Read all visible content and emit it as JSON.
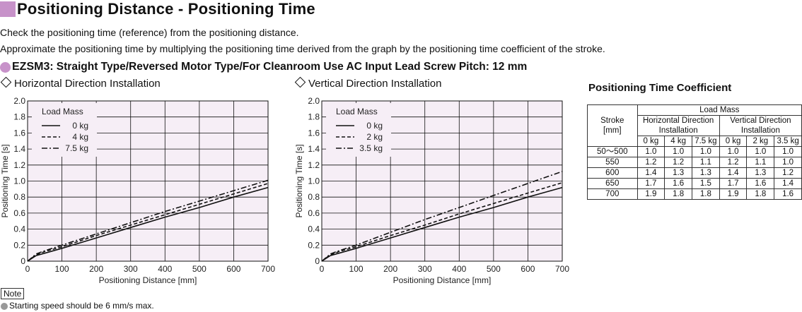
{
  "header": {
    "title": "Positioning Distance - Positioning Time",
    "desc1": "Check the positioning time (reference) from the positioning distance.",
    "desc2": "Approximate the positioning time by multiplying the positioning time derived from the graph by the positioning time coefficient of the stroke.",
    "model": "EZSM3",
    "model_desc": ": Straight Type/Reversed Motor Type/For Cleanroom Use AC Input Lead Screw Pitch: 12 mm",
    "accent_color": "#c792c9"
  },
  "chart_data": [
    {
      "type": "line",
      "title": "Horizontal Direction Installation",
      "xlabel": "Positioning Distance [mm]",
      "ylabel": "Positioning Time [s]",
      "xlim": [
        0,
        700
      ],
      "ylim": [
        0,
        2.0
      ],
      "xticks": [
        "0",
        "100",
        "200",
        "300",
        "400",
        "500",
        "600",
        "700"
      ],
      "yticks": [
        "0",
        "0.2",
        "0.4",
        "0.6",
        "0.8",
        "1.0",
        "1.2",
        "1.4",
        "1.6",
        "1.8",
        "2.0"
      ],
      "grid": true,
      "legend_title": "Load Mass",
      "legend_position": "top-left",
      "series": [
        {
          "name": "0 kg",
          "style": "solid",
          "x": [
            0,
            25,
            50,
            100,
            200,
            300,
            400,
            500,
            600,
            700
          ],
          "y": [
            0,
            0.07,
            0.1,
            0.16,
            0.29,
            0.42,
            0.55,
            0.67,
            0.8,
            0.92
          ]
        },
        {
          "name": "4 kg",
          "style": "dashed",
          "x": [
            0,
            25,
            50,
            100,
            200,
            300,
            400,
            500,
            600,
            700
          ],
          "y": [
            0,
            0.08,
            0.12,
            0.18,
            0.32,
            0.45,
            0.58,
            0.71,
            0.84,
            0.97
          ]
        },
        {
          "name": "7.5 kg",
          "style": "dashdot",
          "x": [
            0,
            25,
            50,
            100,
            200,
            300,
            400,
            500,
            600,
            700
          ],
          "y": [
            0,
            0.09,
            0.13,
            0.2,
            0.34,
            0.48,
            0.62,
            0.75,
            0.88,
            1.01
          ]
        }
      ]
    },
    {
      "type": "line",
      "title": "Vertical Direction Installation",
      "xlabel": "Positioning Distance [mm]",
      "ylabel": "Positioning Time [s]",
      "xlim": [
        0,
        700
      ],
      "ylim": [
        0,
        2.0
      ],
      "xticks": [
        "0",
        "100",
        "200",
        "300",
        "400",
        "500",
        "600",
        "700"
      ],
      "yticks": [
        "0",
        "0.2",
        "0.4",
        "0.6",
        "0.8",
        "1.0",
        "1.2",
        "1.4",
        "1.6",
        "1.8",
        "2.0"
      ],
      "grid": true,
      "legend_title": "Load Mass",
      "legend_position": "top-left",
      "series": [
        {
          "name": "0 kg",
          "style": "solid",
          "x": [
            0,
            25,
            50,
            100,
            200,
            300,
            400,
            500,
            600,
            700
          ],
          "y": [
            0,
            0.07,
            0.1,
            0.16,
            0.29,
            0.42,
            0.55,
            0.67,
            0.8,
            0.92
          ]
        },
        {
          "name": "2 kg",
          "style": "dashed",
          "x": [
            0,
            25,
            50,
            100,
            200,
            300,
            400,
            500,
            600,
            700
          ],
          "y": [
            0,
            0.08,
            0.12,
            0.18,
            0.32,
            0.45,
            0.59,
            0.72,
            0.85,
            0.98
          ]
        },
        {
          "name": "3.5 kg",
          "style": "dashdot",
          "x": [
            0,
            25,
            50,
            100,
            200,
            300,
            400,
            500,
            600,
            700
          ],
          "y": [
            0,
            0.09,
            0.13,
            0.2,
            0.36,
            0.52,
            0.67,
            0.82,
            0.97,
            1.12
          ]
        }
      ]
    }
  ],
  "coefficient": {
    "title": "Positioning Time Coefficient",
    "stroke_header": "Stroke",
    "stroke_unit": "[mm]",
    "load_mass_header": "Load Mass",
    "horizontal_header": "Horizontal Direction Installation",
    "vertical_header": "Vertical Direction Installation",
    "mass_columns": [
      "0 kg",
      "4 kg",
      "7.5 kg",
      "0 kg",
      "2 kg",
      "3.5 kg"
    ],
    "rows": [
      {
        "stroke": "50～500",
        "values": [
          "1.0",
          "1.0",
          "1.0",
          "1.0",
          "1.0",
          "1.0"
        ]
      },
      {
        "stroke": "550",
        "values": [
          "1.2",
          "1.2",
          "1.1",
          "1.2",
          "1.1",
          "1.0"
        ]
      },
      {
        "stroke": "600",
        "values": [
          "1.4",
          "1.3",
          "1.3",
          "1.4",
          "1.3",
          "1.2"
        ]
      },
      {
        "stroke": "650",
        "values": [
          "1.7",
          "1.6",
          "1.5",
          "1.7",
          "1.6",
          "1.4"
        ]
      },
      {
        "stroke": "700",
        "values": [
          "1.9",
          "1.8",
          "1.8",
          "1.9",
          "1.8",
          "1.6"
        ]
      }
    ]
  },
  "note": {
    "label": "Note",
    "text": "Starting speed should be 6 mm/s max."
  }
}
